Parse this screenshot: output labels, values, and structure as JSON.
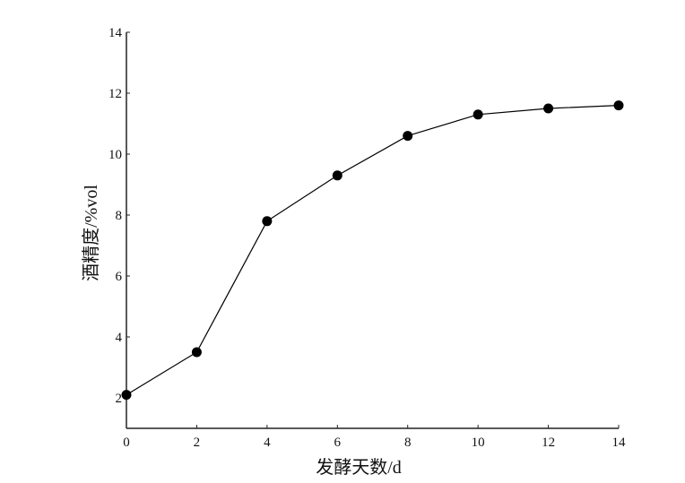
{
  "chart_data": {
    "type": "line",
    "title": "",
    "xlabel": "发酵天数/d",
    "ylabel": "酒精度/%vol",
    "x": [
      0,
      2,
      4,
      6,
      8,
      10,
      12,
      14
    ],
    "series": [
      {
        "values": [
          2.1,
          3.5,
          7.8,
          9.3,
          10.6,
          11.3,
          11.5,
          11.6
        ],
        "color": "#000000",
        "marker": "filled-circle"
      }
    ],
    "xlim": [
      0,
      14
    ],
    "ylim": [
      1,
      14
    ],
    "xticks": [
      0,
      2,
      4,
      6,
      8,
      10,
      12,
      14
    ],
    "yticks": [
      2,
      4,
      6,
      8,
      10,
      12,
      14
    ],
    "grid": false,
    "legend": "none"
  }
}
